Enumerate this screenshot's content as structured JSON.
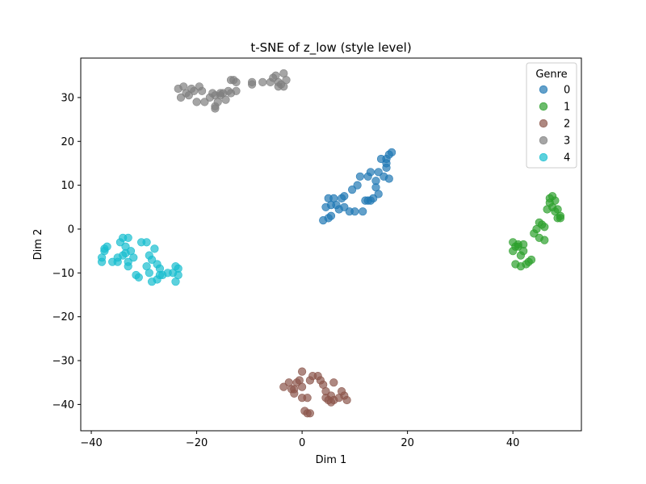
{
  "chart_data": {
    "type": "scatter",
    "title": "t-SNE of z_low (style level)",
    "xlabel": "Dim 1",
    "ylabel": "Dim 2",
    "xlim": [
      -42,
      53
    ],
    "ylim": [
      -46,
      39
    ],
    "xticks": [
      -40,
      -20,
      0,
      20,
      40
    ],
    "yticks": [
      -40,
      -30,
      -20,
      -10,
      0,
      10,
      20,
      30
    ],
    "grid": false,
    "legend": {
      "title": "Genre",
      "placement": "top-right"
    },
    "series": [
      {
        "name": "0",
        "color": "#1f77b4",
        "points": [
          [
            4,
            2
          ],
          [
            4.5,
            5
          ],
          [
            5,
            7
          ],
          [
            5.5,
            3
          ],
          [
            6,
            7
          ],
          [
            6.5,
            5.5
          ],
          [
            7,
            4.5
          ],
          [
            7.5,
            7
          ],
          [
            8,
            5
          ],
          [
            8,
            7.5
          ],
          [
            9,
            4
          ],
          [
            9.5,
            9
          ],
          [
            10,
            4
          ],
          [
            10.5,
            10
          ],
          [
            11,
            12
          ],
          [
            11.5,
            4
          ],
          [
            12,
            6.5
          ],
          [
            12.5,
            12
          ],
          [
            13,
            13
          ],
          [
            13,
            6.5
          ],
          [
            13.5,
            7
          ],
          [
            14,
            9.5
          ],
          [
            14,
            11
          ],
          [
            14.5,
            13
          ],
          [
            15,
            16
          ],
          [
            15.5,
            12
          ],
          [
            16,
            14
          ],
          [
            16,
            16
          ],
          [
            16.5,
            11.5
          ],
          [
            16.5,
            17
          ],
          [
            17,
            17.5
          ],
          [
            16,
            15
          ],
          [
            5,
            2.5
          ],
          [
            5.5,
            5.5
          ],
          [
            12.5,
            6.5
          ],
          [
            14.5,
            8
          ]
        ]
      },
      {
        "name": "1",
        "color": "#2ca02c",
        "points": [
          [
            40,
            -3
          ],
          [
            40,
            -5
          ],
          [
            40.5,
            -8
          ],
          [
            41,
            -4
          ],
          [
            41.5,
            -6
          ],
          [
            41.5,
            -8.5
          ],
          [
            42,
            -3.5
          ],
          [
            42,
            -5
          ],
          [
            42.5,
            -8
          ],
          [
            43,
            -7.5
          ],
          [
            43.5,
            -7
          ],
          [
            44,
            -1
          ],
          [
            44.5,
            0
          ],
          [
            45,
            -2
          ],
          [
            45,
            1.5
          ],
          [
            45.5,
            1
          ],
          [
            46,
            -2.5
          ],
          [
            46,
            0.5
          ],
          [
            46.5,
            4.5
          ],
          [
            47,
            6
          ],
          [
            47,
            7
          ],
          [
            47.5,
            5
          ],
          [
            47.5,
            7.5
          ],
          [
            48,
            4
          ],
          [
            48,
            6.5
          ],
          [
            48.5,
            2.5
          ],
          [
            48.5,
            4.5
          ],
          [
            49,
            3
          ],
          [
            49,
            2.5
          ],
          [
            40.5,
            -4
          ],
          [
            41,
            -3.5
          ]
        ]
      },
      {
        "name": "2",
        "color": "#8c564b",
        "points": [
          [
            -3.5,
            -36
          ],
          [
            -2.5,
            -35
          ],
          [
            -2,
            -36.5
          ],
          [
            -1.5,
            -37.5
          ],
          [
            -1,
            -35
          ],
          [
            -0.5,
            -34.5
          ],
          [
            0,
            -32.5
          ],
          [
            0,
            -36
          ],
          [
            0,
            -38.5
          ],
          [
            0.5,
            -41.5
          ],
          [
            1,
            -38.5
          ],
          [
            1,
            -42
          ],
          [
            1.5,
            -34.5
          ],
          [
            1.5,
            -42
          ],
          [
            2,
            -33.5
          ],
          [
            3,
            -33.5
          ],
          [
            3.5,
            -34.5
          ],
          [
            4,
            -35.5
          ],
          [
            4.5,
            -37
          ],
          [
            4.5,
            -38.5
          ],
          [
            5,
            -39
          ],
          [
            5.5,
            -38
          ],
          [
            5.5,
            -39.5
          ],
          [
            6,
            -35
          ],
          [
            6,
            -39
          ],
          [
            7,
            -38.5
          ],
          [
            7.5,
            -37
          ],
          [
            8,
            -38
          ],
          [
            8.5,
            -39
          ],
          [
            -1.5,
            -36.5
          ]
        ]
      },
      {
        "name": "3",
        "color": "#7f7f7f",
        "points": [
          [
            -23.5,
            32
          ],
          [
            -23,
            30
          ],
          [
            -22.5,
            32.5
          ],
          [
            -22,
            31
          ],
          [
            -21.5,
            30.5
          ],
          [
            -21,
            32
          ],
          [
            -20.5,
            31.5
          ],
          [
            -20,
            29
          ],
          [
            -19.5,
            32.5
          ],
          [
            -19,
            31.5
          ],
          [
            -18.5,
            29
          ],
          [
            -17.5,
            30
          ],
          [
            -17,
            31
          ],
          [
            -16.5,
            28
          ],
          [
            -16,
            29
          ],
          [
            -15.5,
            30.5
          ],
          [
            -15,
            31
          ],
          [
            -14.5,
            29.5
          ],
          [
            -14,
            31.5
          ],
          [
            -13.5,
            31
          ],
          [
            -13.5,
            34
          ],
          [
            -13,
            34
          ],
          [
            -12.5,
            31.5
          ],
          [
            -12.5,
            33.5
          ],
          [
            -9.5,
            33
          ],
          [
            -9.5,
            33.5
          ],
          [
            -7.5,
            33.5
          ],
          [
            -6,
            33.5
          ],
          [
            -5.5,
            34.5
          ],
          [
            -5,
            35
          ],
          [
            -4.5,
            32.5
          ],
          [
            -4.5,
            33.5
          ],
          [
            -4,
            33
          ],
          [
            -3.5,
            32.5
          ],
          [
            -3.5,
            35.5
          ],
          [
            -3,
            34
          ],
          [
            -16.5,
            27.5
          ],
          [
            -16.5,
            30.5
          ],
          [
            -15.5,
            31
          ]
        ]
      },
      {
        "name": "4",
        "color": "#17becf",
        "points": [
          [
            -38,
            -6.5
          ],
          [
            -38,
            -7.5
          ],
          [
            -37.5,
            -4.5
          ],
          [
            -37.5,
            -5
          ],
          [
            -37,
            -4
          ],
          [
            -36,
            -7.5
          ],
          [
            -35,
            -6.5
          ],
          [
            -35,
            -7.5
          ],
          [
            -34.5,
            -3
          ],
          [
            -34,
            -2
          ],
          [
            -33.5,
            -4
          ],
          [
            -33.5,
            -5.5
          ],
          [
            -33,
            -2
          ],
          [
            -33,
            -7.5
          ],
          [
            -33,
            -8.5
          ],
          [
            -32.5,
            -5
          ],
          [
            -32,
            -6.5
          ],
          [
            -31.5,
            -10.5
          ],
          [
            -31,
            -11
          ],
          [
            -30.5,
            -3
          ],
          [
            -29.5,
            -3
          ],
          [
            -29.5,
            -8.5
          ],
          [
            -29,
            -6
          ],
          [
            -29,
            -10
          ],
          [
            -28.5,
            -12
          ],
          [
            -28.5,
            -7
          ],
          [
            -28,
            -4.5
          ],
          [
            -27.5,
            -8
          ],
          [
            -27.5,
            -11.5
          ],
          [
            -27,
            -9
          ],
          [
            -27,
            -10.5
          ],
          [
            -26.5,
            -10.5
          ],
          [
            -25.5,
            -10
          ],
          [
            -24.5,
            -10
          ],
          [
            -24,
            -8.5
          ],
          [
            -24,
            -12
          ],
          [
            -23.5,
            -10.5
          ],
          [
            -23.5,
            -9
          ],
          [
            -34,
            -6
          ]
        ]
      }
    ]
  }
}
